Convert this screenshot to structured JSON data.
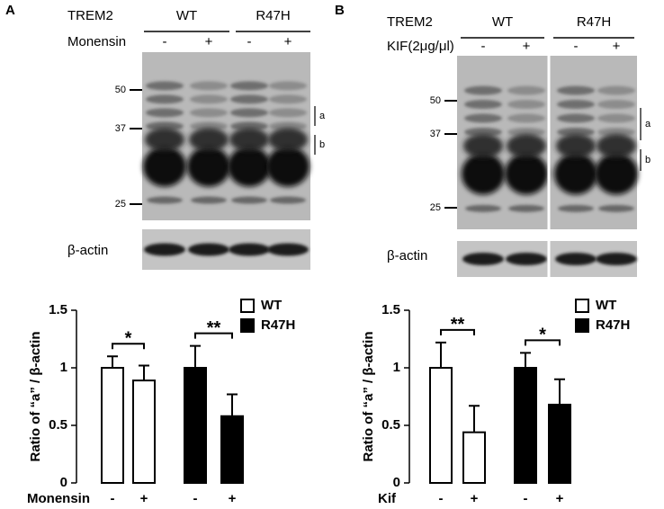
{
  "blots": [
    {
      "label": "A",
      "protein": "TREM2",
      "groups": [
        "WT",
        "R47H"
      ],
      "treatment": "Monensin",
      "conditions": [
        "-",
        "+"
      ],
      "markers": [
        50,
        37,
        25
      ],
      "bands": [
        "a",
        "b"
      ],
      "loading": "β-actin"
    },
    {
      "label": "B",
      "protein": "TREM2",
      "groups": [
        "WT",
        "R47H"
      ],
      "treatment": "KIF(2μg/μl)",
      "conditions": [
        "-",
        "+"
      ],
      "markers": [
        50,
        37,
        25
      ],
      "bands": [
        "a",
        "b"
      ],
      "loading": "β-actin"
    }
  ],
  "chart_data": [
    {
      "type": "bar",
      "ylabel": "Ratio of “a” / β-actin",
      "xlabel": "Monensin",
      "categories": [
        "-",
        "+"
      ],
      "series": [
        {
          "name": "WT",
          "color": "#ffffff",
          "values": [
            1.0,
            0.89
          ],
          "errors": [
            0.1,
            0.13
          ]
        },
        {
          "name": "R47H",
          "color": "#000000",
          "values": [
            1.0,
            0.58
          ],
          "errors": [
            0.19,
            0.19
          ]
        }
      ],
      "annotations": [
        {
          "text": "*",
          "series": 0
        },
        {
          "text": "**",
          "series": 1
        }
      ],
      "ylim": [
        0,
        1.5
      ],
      "yticks": [
        0,
        0.5,
        1,
        1.5
      ],
      "legend": "upper right"
    },
    {
      "type": "bar",
      "ylabel": "Ratio of “a” / β-actin",
      "xlabel": "Kif",
      "categories": [
        "-",
        "+"
      ],
      "series": [
        {
          "name": "WT",
          "color": "#ffffff",
          "values": [
            1.0,
            0.44
          ],
          "errors": [
            0.22,
            0.23
          ]
        },
        {
          "name": "R47H",
          "color": "#000000",
          "values": [
            1.0,
            0.68
          ],
          "errors": [
            0.13,
            0.22
          ]
        }
      ],
      "annotations": [
        {
          "text": "**",
          "series": 0
        },
        {
          "text": "*",
          "series": 1
        }
      ],
      "ylim": [
        0,
        1.5
      ],
      "yticks": [
        0,
        0.5,
        1,
        1.5
      ],
      "legend": "upper right"
    }
  ]
}
